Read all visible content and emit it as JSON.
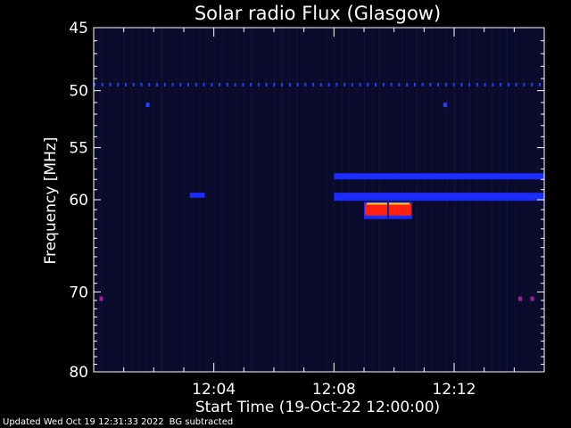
{
  "chart_data": {
    "type": "heatmap",
    "title": "Solar radio Flux (Glasgow)",
    "xlabel": "Start Time (19-Oct-22 12:00:00)",
    "ylabel": "Frequency [MHz]",
    "x_unit": "minutes after 12:00:00",
    "xlim": [
      0,
      15
    ],
    "x_ticks": [
      {
        "value": 4,
        "label": "12:04"
      },
      {
        "value": 8,
        "label": "12:08"
      },
      {
        "value": 12,
        "label": "12:12"
      }
    ],
    "y_scale": "log",
    "ylim": [
      45,
      80
    ],
    "y_ticks": [
      {
        "value": 45,
        "label": "45"
      },
      {
        "value": 50,
        "label": "50"
      },
      {
        "value": 55,
        "label": "55"
      },
      {
        "value": 60,
        "label": "60"
      },
      {
        "value": 70,
        "label": "70"
      },
      {
        "value": 80,
        "label": "80"
      }
    ],
    "background_color": "#0a0a2a",
    "features": [
      {
        "kind": "dotted_line",
        "freq": 49.5,
        "t_start": 0,
        "t_end": 15,
        "color": "#2040ff"
      },
      {
        "kind": "dot",
        "freq": 51.2,
        "t": 1.8,
        "color": "#2040ff"
      },
      {
        "kind": "dot",
        "freq": 51.2,
        "t": 11.7,
        "color": "#2040ff"
      },
      {
        "kind": "band",
        "freq_start": 57.4,
        "freq_end": 58.0,
        "t_start": 8.0,
        "t_end": 15.0,
        "color": "#1a2cff"
      },
      {
        "kind": "band",
        "freq_start": 59.3,
        "freq_end": 60.1,
        "t_start": 8.0,
        "t_end": 15.0,
        "color": "#1a2cff"
      },
      {
        "kind": "band",
        "freq_start": 59.3,
        "freq_end": 59.8,
        "t_start": 3.2,
        "t_end": 3.7,
        "color": "#1a2cff"
      },
      {
        "kind": "burst",
        "freq_start": 60.4,
        "freq_end": 61.6,
        "t_start": 9.0,
        "t_end": 10.6,
        "color": "#ff2010"
      },
      {
        "kind": "dot",
        "freq": 70.8,
        "t": 0.25,
        "color": "#a020a0"
      },
      {
        "kind": "dot",
        "freq": 70.8,
        "t": 14.2,
        "color": "#a020a0"
      },
      {
        "kind": "dot",
        "freq": 70.8,
        "t": 14.6,
        "color": "#a020a0"
      }
    ]
  },
  "footer": {
    "updated": "Updated Wed Oct 19 12:31:33 2022",
    "note": "BG subtracted"
  }
}
